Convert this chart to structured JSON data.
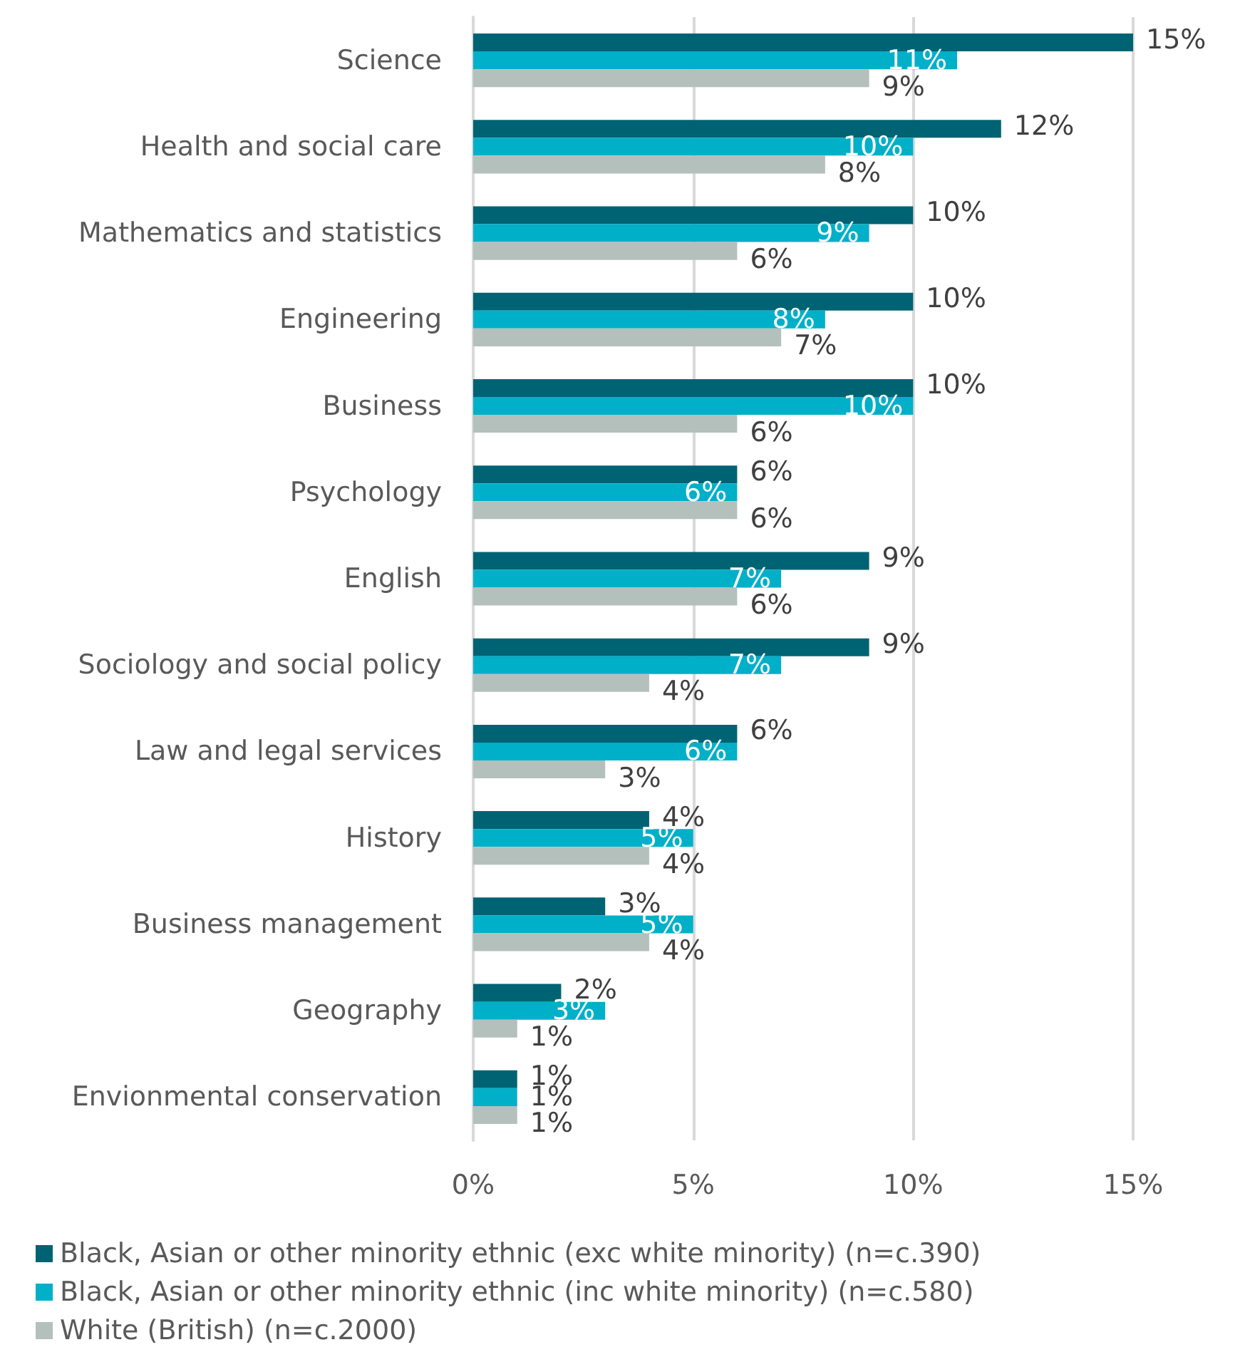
{
  "chart_data": {
    "type": "bar",
    "orientation": "horizontal",
    "categories": [
      "Science",
      "Health and social care",
      "Mathematics and statistics",
      "Engineering",
      "Business",
      "Psychology",
      "English",
      "Sociology and social policy",
      "Law and legal services",
      "History",
      "Business management",
      "Geography",
      "Envionmental conservation"
    ],
    "series": [
      {
        "name": "Black, Asian or other minority ethnic (exc white minority) (n=c.390)",
        "color": "#006373",
        "values": [
          15,
          12,
          10,
          10,
          10,
          6,
          9,
          9,
          6,
          4,
          3,
          2,
          1
        ],
        "value_labels": [
          "15%",
          "12%",
          "10%",
          "10%",
          "10%",
          "6%",
          "9%",
          "9%",
          "6%",
          "4%",
          "3%",
          "2%",
          "1%"
        ]
      },
      {
        "name": "Black, Asian or other minority ethnic (inc white minority) (n=c.580)",
        "color": "#00b0c8",
        "values": [
          11,
          10,
          9,
          8,
          10,
          6,
          7,
          7,
          6,
          5,
          5,
          3,
          1
        ],
        "value_labels": [
          "11%",
          "10%",
          "9%",
          "8%",
          "10%",
          "6%",
          "7%",
          "7%",
          "6%",
          "5%",
          "5%",
          "3%",
          "1%"
        ]
      },
      {
        "name": "White (British) (n=c.2000)",
        "color": "#b4c0bc",
        "values": [
          9,
          8,
          6,
          7,
          6,
          6,
          6,
          4,
          3,
          4,
          4,
          1,
          1
        ],
        "value_labels": [
          "9%",
          "8%",
          "6%",
          "7%",
          "6%",
          "6%",
          "6%",
          "4%",
          "3%",
          "4%",
          "4%",
          "1%",
          "1%"
        ]
      }
    ],
    "xlim": [
      0,
      15
    ],
    "xticks": [
      {
        "value": 0,
        "label": "0%"
      },
      {
        "value": 5,
        "label": "5%"
      },
      {
        "value": 10,
        "label": "10%"
      },
      {
        "value": 15,
        "label": "15%"
      }
    ],
    "grid": "x",
    "legend": "bottom"
  }
}
